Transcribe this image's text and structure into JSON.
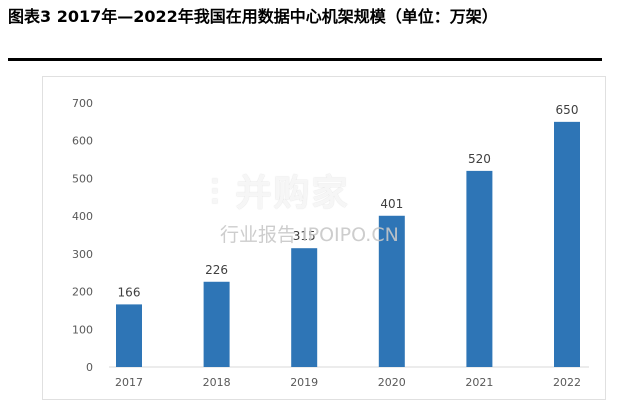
{
  "figure": {
    "title": "图表3 2017年—2022年我国在用数据中心机架规模（单位：万架）"
  },
  "watermark": {
    "logo": "⫶ 并购家",
    "sub": "行业报告 IPOIPO.CN"
  },
  "colors": {
    "bar": "#2E75B6",
    "axis_text": "#595959",
    "label_text": "#404040",
    "baseline": "#d9d9d9"
  },
  "chart_data": {
    "type": "bar",
    "categories": [
      "2017",
      "2018",
      "2019",
      "2020",
      "2021",
      "2022"
    ],
    "values": [
      166,
      226,
      315,
      401,
      520,
      650
    ],
    "data_labels": [
      "166",
      "226",
      "315",
      "401",
      "520",
      "650"
    ],
    "yticks": [
      "0",
      "100",
      "200",
      "300",
      "400",
      "500",
      "600",
      "700"
    ],
    "ylim": [
      0,
      700
    ],
    "grid": false,
    "legend": "none"
  }
}
